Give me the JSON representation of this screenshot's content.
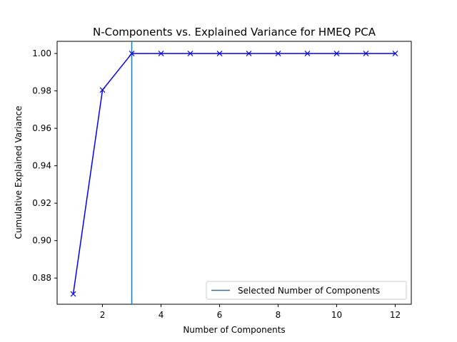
{
  "chart_data": {
    "type": "line",
    "title": "N-Components vs. Explained Variance for HMEQ PCA",
    "xlabel": "Number of Components",
    "ylabel": "Cumulative Explained Variance",
    "xlim": [
      0.45,
      12.55
    ],
    "ylim": [
      0.866,
      1.0065
    ],
    "x_ticks": [
      2,
      4,
      6,
      8,
      10,
      12
    ],
    "y_ticks": [
      0.88,
      0.9,
      0.92,
      0.94,
      0.96,
      0.98,
      1.0
    ],
    "x_tick_labels": [
      "2",
      "4",
      "6",
      "8",
      "10",
      "12"
    ],
    "y_tick_labels": [
      "0.88",
      "0.90",
      "0.92",
      "0.94",
      "0.96",
      "0.98",
      "1.00"
    ],
    "grid": false,
    "series": [
      {
        "x": [
          1,
          2,
          3,
          4,
          5,
          6,
          7,
          8,
          9,
          10,
          11,
          12
        ],
        "values": [
          0.8715,
          0.9805,
          1.0,
          1.0,
          1.0,
          1.0,
          1.0,
          1.0,
          1.0,
          1.0,
          1.0,
          1.0
        ],
        "color": "#0000ff",
        "marker": "x"
      }
    ],
    "vline": {
      "x": 3,
      "name": "Selected Number of Components",
      "color": "#1f77b4"
    },
    "legend": {
      "placement": "lower-right",
      "entries": [
        "Selected Number of Components"
      ]
    }
  }
}
